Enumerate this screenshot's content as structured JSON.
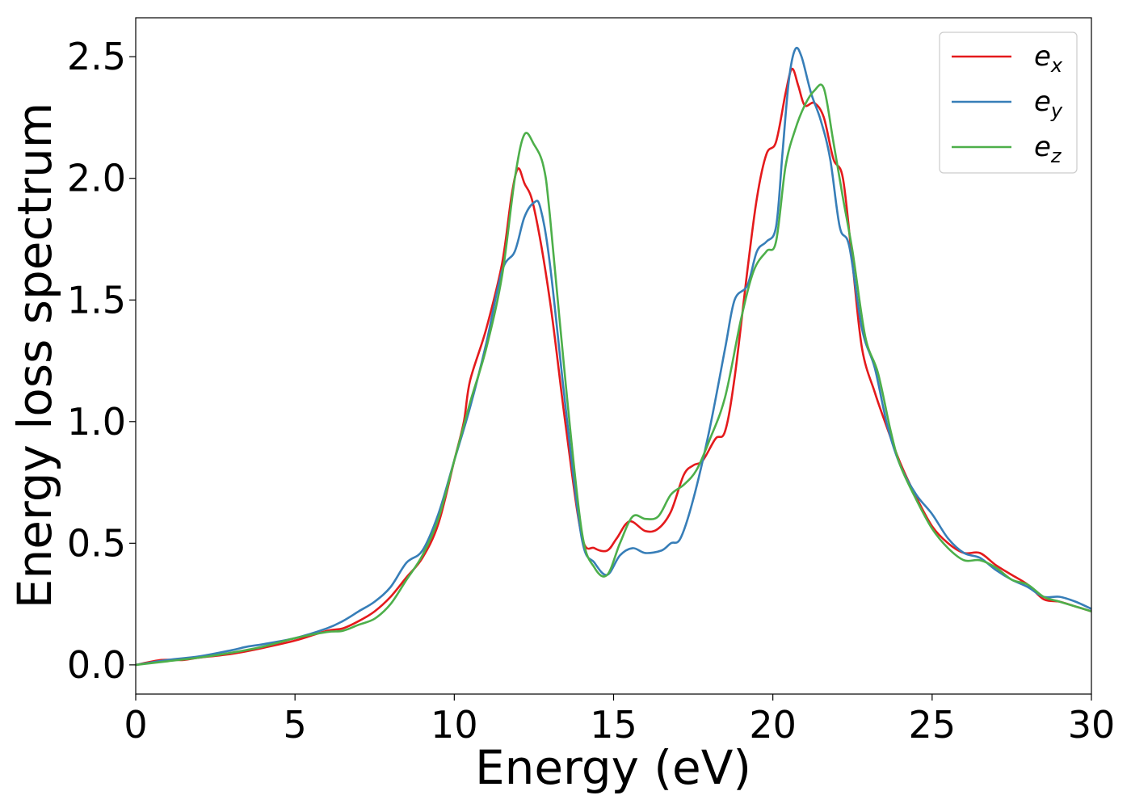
{
  "chart_data": {
    "type": "line",
    "title": "",
    "xlabel": "Energy (eV)",
    "ylabel": "Energy loss spectrum",
    "xlim": [
      0,
      30
    ],
    "ylim": [
      -0.12,
      2.66
    ],
    "xticks": [
      "0",
      "5",
      "10",
      "15",
      "20",
      "25",
      "30"
    ],
    "yticks": [
      "0.0",
      "0.5",
      "1.0",
      "1.5",
      "2.0",
      "2.5"
    ],
    "grid": false,
    "legend_position": "top-right",
    "series": [
      {
        "name": "e",
        "subscript": "x",
        "color": "#e41a1c",
        "points": [
          [
            0,
            0
          ],
          [
            0.8,
            0.02
          ],
          [
            1.5,
            0.02
          ],
          [
            2,
            0.03
          ],
          [
            3,
            0.045
          ],
          [
            4,
            0.07
          ],
          [
            5,
            0.1
          ],
          [
            6,
            0.14
          ],
          [
            6.5,
            0.15
          ],
          [
            7,
            0.18
          ],
          [
            7.5,
            0.22
          ],
          [
            8,
            0.28
          ],
          [
            8.5,
            0.36
          ],
          [
            9,
            0.44
          ],
          [
            9.5,
            0.58
          ],
          [
            10,
            0.84
          ],
          [
            10.3,
            1.0
          ],
          [
            10.5,
            1.17
          ],
          [
            11,
            1.38
          ],
          [
            11.5,
            1.65
          ],
          [
            11.8,
            1.93
          ],
          [
            12,
            2.04
          ],
          [
            12.2,
            1.98
          ],
          [
            12.5,
            1.88
          ],
          [
            13,
            1.5
          ],
          [
            13.5,
            0.98
          ],
          [
            14,
            0.53
          ],
          [
            14.4,
            0.48
          ],
          [
            14.8,
            0.47
          ],
          [
            15.1,
            0.52
          ],
          [
            15.5,
            0.59
          ],
          [
            16,
            0.55
          ],
          [
            16.4,
            0.56
          ],
          [
            16.8,
            0.63
          ],
          [
            17.2,
            0.78
          ],
          [
            17.5,
            0.82
          ],
          [
            17.8,
            0.84
          ],
          [
            18.2,
            0.93
          ],
          [
            18.5,
            0.96
          ],
          [
            18.8,
            1.18
          ],
          [
            19.2,
            1.62
          ],
          [
            19.5,
            1.92
          ],
          [
            19.8,
            2.1
          ],
          [
            20.1,
            2.15
          ],
          [
            20.4,
            2.35
          ],
          [
            20.6,
            2.45
          ],
          [
            20.8,
            2.38
          ],
          [
            21,
            2.3
          ],
          [
            21.3,
            2.31
          ],
          [
            21.6,
            2.25
          ],
          [
            21.9,
            2.08
          ],
          [
            22.2,
            2.0
          ],
          [
            22.5,
            1.65
          ],
          [
            22.8,
            1.3
          ],
          [
            23.2,
            1.12
          ],
          [
            23.6,
            0.97
          ],
          [
            24,
            0.83
          ],
          [
            24.5,
            0.69
          ],
          [
            25,
            0.57
          ],
          [
            25.5,
            0.5
          ],
          [
            26,
            0.46
          ],
          [
            26.5,
            0.46
          ],
          [
            27,
            0.41
          ],
          [
            27.5,
            0.37
          ],
          [
            28,
            0.33
          ],
          [
            28.5,
            0.27
          ],
          [
            29,
            0.26
          ],
          [
            29.5,
            0.24
          ],
          [
            30,
            0.22
          ]
        ]
      },
      {
        "name": "e",
        "subscript": "y",
        "color": "#377eb8",
        "points": [
          [
            0,
            0
          ],
          [
            1,
            0.02
          ],
          [
            2,
            0.035
          ],
          [
            3,
            0.06
          ],
          [
            3.5,
            0.075
          ],
          [
            4,
            0.085
          ],
          [
            5,
            0.11
          ],
          [
            6,
            0.15
          ],
          [
            6.5,
            0.18
          ],
          [
            7,
            0.22
          ],
          [
            7.5,
            0.26
          ],
          [
            8,
            0.32
          ],
          [
            8.5,
            0.42
          ],
          [
            9,
            0.47
          ],
          [
            9.5,
            0.62
          ],
          [
            10,
            0.84
          ],
          [
            10.5,
            1.06
          ],
          [
            11,
            1.32
          ],
          [
            11.5,
            1.62
          ],
          [
            11.9,
            1.7
          ],
          [
            12.2,
            1.84
          ],
          [
            12.5,
            1.9
          ],
          [
            12.7,
            1.88
          ],
          [
            13,
            1.65
          ],
          [
            13.5,
            1.05
          ],
          [
            14,
            0.52
          ],
          [
            14.4,
            0.42
          ],
          [
            14.8,
            0.37
          ],
          [
            15.2,
            0.45
          ],
          [
            15.6,
            0.48
          ],
          [
            16,
            0.46
          ],
          [
            16.5,
            0.47
          ],
          [
            16.8,
            0.5
          ],
          [
            17.1,
            0.52
          ],
          [
            17.5,
            0.68
          ],
          [
            18,
            0.96
          ],
          [
            18.5,
            1.3
          ],
          [
            18.8,
            1.5
          ],
          [
            19.2,
            1.56
          ],
          [
            19.5,
            1.7
          ],
          [
            19.8,
            1.74
          ],
          [
            20.1,
            1.8
          ],
          [
            20.3,
            2.1
          ],
          [
            20.5,
            2.4
          ],
          [
            20.7,
            2.53
          ],
          [
            20.9,
            2.5
          ],
          [
            21.2,
            2.35
          ],
          [
            21.5,
            2.24
          ],
          [
            21.8,
            2.08
          ],
          [
            22.1,
            1.8
          ],
          [
            22.4,
            1.72
          ],
          [
            22.8,
            1.38
          ],
          [
            23.2,
            1.22
          ],
          [
            23.6,
            0.98
          ],
          [
            24,
            0.82
          ],
          [
            24.5,
            0.7
          ],
          [
            25,
            0.62
          ],
          [
            25.5,
            0.52
          ],
          [
            26,
            0.46
          ],
          [
            26.5,
            0.44
          ],
          [
            27,
            0.39
          ],
          [
            27.5,
            0.35
          ],
          [
            28,
            0.32
          ],
          [
            28.5,
            0.28
          ],
          [
            29,
            0.28
          ],
          [
            29.5,
            0.26
          ],
          [
            30,
            0.23
          ]
        ]
      },
      {
        "name": "e",
        "subscript": "z",
        "color": "#4daf4a",
        "points": [
          [
            0,
            0
          ],
          [
            1,
            0.015
          ],
          [
            2,
            0.03
          ],
          [
            3,
            0.05
          ],
          [
            4,
            0.075
          ],
          [
            5,
            0.11
          ],
          [
            6,
            0.135
          ],
          [
            6.5,
            0.14
          ],
          [
            7,
            0.165
          ],
          [
            7.5,
            0.19
          ],
          [
            8,
            0.25
          ],
          [
            8.5,
            0.35
          ],
          [
            9,
            0.45
          ],
          [
            9.5,
            0.6
          ],
          [
            10,
            0.84
          ],
          [
            10.5,
            1.08
          ],
          [
            11,
            1.3
          ],
          [
            11.5,
            1.6
          ],
          [
            11.9,
            2.0
          ],
          [
            12.2,
            2.18
          ],
          [
            12.5,
            2.14
          ],
          [
            12.8,
            2.05
          ],
          [
            13,
            1.85
          ],
          [
            13.5,
            1.15
          ],
          [
            14,
            0.55
          ],
          [
            14.4,
            0.4
          ],
          [
            14.8,
            0.37
          ],
          [
            15.2,
            0.5
          ],
          [
            15.6,
            0.61
          ],
          [
            16,
            0.6
          ],
          [
            16.4,
            0.61
          ],
          [
            16.8,
            0.7
          ],
          [
            17.2,
            0.74
          ],
          [
            17.6,
            0.8
          ],
          [
            18,
            0.92
          ],
          [
            18.5,
            1.1
          ],
          [
            19,
            1.42
          ],
          [
            19.4,
            1.62
          ],
          [
            19.8,
            1.7
          ],
          [
            20.1,
            1.74
          ],
          [
            20.4,
            2.05
          ],
          [
            20.7,
            2.2
          ],
          [
            21,
            2.3
          ],
          [
            21.3,
            2.36
          ],
          [
            21.6,
            2.37
          ],
          [
            21.9,
            2.15
          ],
          [
            22.2,
            1.92
          ],
          [
            22.5,
            1.7
          ],
          [
            22.9,
            1.35
          ],
          [
            23.3,
            1.2
          ],
          [
            23.7,
            0.96
          ],
          [
            24,
            0.82
          ],
          [
            24.5,
            0.68
          ],
          [
            25,
            0.56
          ],
          [
            25.5,
            0.48
          ],
          [
            26,
            0.43
          ],
          [
            26.5,
            0.43
          ],
          [
            27,
            0.4
          ],
          [
            27.5,
            0.35
          ],
          [
            28,
            0.33
          ],
          [
            28.5,
            0.28
          ],
          [
            29,
            0.26
          ],
          [
            29.5,
            0.24
          ],
          [
            30,
            0.22
          ]
        ]
      }
    ]
  }
}
